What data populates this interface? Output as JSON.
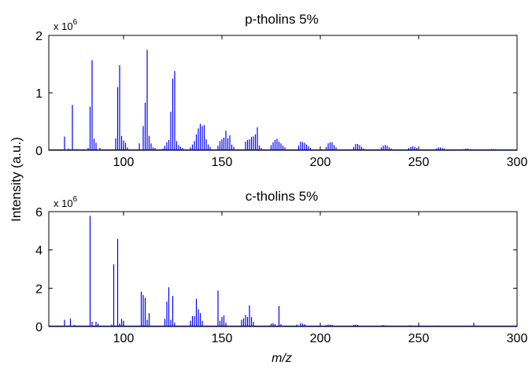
{
  "figure": {
    "ylabel": "Intensity (a.u.)",
    "xlabel": "m/z",
    "colors": {
      "spectrum": "#0000ff",
      "axes": "#000000"
    }
  },
  "chart_data": [
    {
      "type": "bar",
      "title": "p-tholins 5%",
      "xlabel": "",
      "ylabel": "",
      "xlim": [
        62,
        300
      ],
      "ylim": [
        0,
        2000000
      ],
      "xticks": [
        100,
        150,
        200,
        250,
        300
      ],
      "yticks": [
        0,
        1,
        2
      ],
      "yticks_labels": [
        "0",
        "1",
        "2"
      ],
      "y_multiplier": {
        "base": "x 10",
        "exponent": "6"
      },
      "grid": false,
      "peaks": [
        [
          70,
          240000
        ],
        [
          72,
          30000
        ],
        [
          74,
          790000
        ],
        [
          76,
          20000
        ],
        [
          82,
          40000
        ],
        [
          83,
          760000
        ],
        [
          84,
          1570000
        ],
        [
          85,
          200000
        ],
        [
          86,
          130000
        ],
        [
          88,
          40000
        ],
        [
          96,
          210000
        ],
        [
          97,
          1100000
        ],
        [
          98,
          1480000
        ],
        [
          99,
          250000
        ],
        [
          100,
          170000
        ],
        [
          101,
          130000
        ],
        [
          102,
          50000
        ],
        [
          108,
          120000
        ],
        [
          110,
          420000
        ],
        [
          111,
          830000
        ],
        [
          112,
          1750000
        ],
        [
          113,
          250000
        ],
        [
          114,
          120000
        ],
        [
          115,
          50000
        ],
        [
          116,
          40000
        ],
        [
          120,
          30000
        ],
        [
          121,
          80000
        ],
        [
          122,
          140000
        ],
        [
          123,
          180000
        ],
        [
          124,
          670000
        ],
        [
          125,
          1250000
        ],
        [
          126,
          1380000
        ],
        [
          127,
          160000
        ],
        [
          128,
          90000
        ],
        [
          129,
          60000
        ],
        [
          130,
          40000
        ],
        [
          134,
          50000
        ],
        [
          135,
          100000
        ],
        [
          136,
          160000
        ],
        [
          137,
          280000
        ],
        [
          138,
          380000
        ],
        [
          139,
          460000
        ],
        [
          140,
          420000
        ],
        [
          141,
          440000
        ],
        [
          142,
          190000
        ],
        [
          143,
          100000
        ],
        [
          144,
          60000
        ],
        [
          148,
          80000
        ],
        [
          149,
          160000
        ],
        [
          150,
          190000
        ],
        [
          151,
          220000
        ],
        [
          152,
          340000
        ],
        [
          153,
          210000
        ],
        [
          154,
          260000
        ],
        [
          155,
          100000
        ],
        [
          156,
          60000
        ],
        [
          162,
          150000
        ],
        [
          163,
          180000
        ],
        [
          164,
          190000
        ],
        [
          165,
          230000
        ],
        [
          166,
          240000
        ],
        [
          167,
          280000
        ],
        [
          168,
          400000
        ],
        [
          169,
          80000
        ],
        [
          170,
          40000
        ],
        [
          175,
          90000
        ],
        [
          176,
          140000
        ],
        [
          177,
          180000
        ],
        [
          178,
          200000
        ],
        [
          179,
          150000
        ],
        [
          180,
          120000
        ],
        [
          181,
          80000
        ],
        [
          182,
          50000
        ],
        [
          189,
          80000
        ],
        [
          190,
          150000
        ],
        [
          191,
          140000
        ],
        [
          192,
          130000
        ],
        [
          193,
          100000
        ],
        [
          194,
          70000
        ],
        [
          195,
          40000
        ],
        [
          203,
          60000
        ],
        [
          204,
          120000
        ],
        [
          205,
          140000
        ],
        [
          206,
          140000
        ],
        [
          207,
          90000
        ],
        [
          208,
          50000
        ],
        [
          217,
          60000
        ],
        [
          218,
          110000
        ],
        [
          219,
          110000
        ],
        [
          220,
          90000
        ],
        [
          221,
          60000
        ],
        [
          222,
          30000
        ],
        [
          231,
          50000
        ],
        [
          232,
          80000
        ],
        [
          233,
          90000
        ],
        [
          234,
          80000
        ],
        [
          235,
          50000
        ],
        [
          236,
          30000
        ],
        [
          245,
          40000
        ],
        [
          246,
          60000
        ],
        [
          247,
          70000
        ],
        [
          248,
          60000
        ],
        [
          249,
          40000
        ],
        [
          259,
          30000
        ],
        [
          260,
          50000
        ],
        [
          261,
          50000
        ],
        [
          262,
          40000
        ],
        [
          263,
          30000
        ],
        [
          273,
          20000
        ],
        [
          274,
          30000
        ],
        [
          275,
          30000
        ],
        [
          276,
          20000
        ],
        [
          287,
          20000
        ],
        [
          288,
          20000
        ],
        [
          289,
          20000
        ],
        [
          290,
          15000
        ]
      ]
    },
    {
      "type": "bar",
      "title": "c-tholins 5%",
      "xlabel": "m/z",
      "ylabel": "",
      "xlim": [
        62,
        300
      ],
      "ylim": [
        0,
        6000000
      ],
      "xticks": [
        100,
        150,
        200,
        250,
        300
      ],
      "yticks": [
        0,
        2,
        4,
        6
      ],
      "yticks_labels": [
        "0",
        "2",
        "4",
        "6"
      ],
      "y_multiplier": {
        "base": "x 10",
        "exponent": "6"
      },
      "grid": false,
      "peaks": [
        [
          70,
          350000
        ],
        [
          73,
          420000
        ],
        [
          75,
          80000
        ],
        [
          83,
          5780000
        ],
        [
          84,
          250000
        ],
        [
          86,
          250000
        ],
        [
          87,
          150000
        ],
        [
          94,
          100000
        ],
        [
          95,
          3250000
        ],
        [
          97,
          4580000
        ],
        [
          98,
          150000
        ],
        [
          99,
          400000
        ],
        [
          100,
          300000
        ],
        [
          109,
          1820000
        ],
        [
          110,
          1650000
        ],
        [
          111,
          1500000
        ],
        [
          112,
          350000
        ],
        [
          113,
          700000
        ],
        [
          121,
          400000
        ],
        [
          122,
          1300000
        ],
        [
          123,
          2050000
        ],
        [
          124,
          350000
        ],
        [
          125,
          1600000
        ],
        [
          126,
          200000
        ],
        [
          134,
          300000
        ],
        [
          135,
          550000
        ],
        [
          136,
          550000
        ],
        [
          137,
          1450000
        ],
        [
          138,
          900000
        ],
        [
          139,
          700000
        ],
        [
          140,
          300000
        ],
        [
          148,
          1880000
        ],
        [
          149,
          300000
        ],
        [
          150,
          500000
        ],
        [
          151,
          580000
        ],
        [
          152,
          200000
        ],
        [
          160,
          350000
        ],
        [
          161,
          420000
        ],
        [
          162,
          600000
        ],
        [
          163,
          500000
        ],
        [
          164,
          1100000
        ],
        [
          165,
          500000
        ],
        [
          166,
          250000
        ],
        [
          175,
          150000
        ],
        [
          176,
          180000
        ],
        [
          177,
          120000
        ],
        [
          179,
          1070000
        ],
        [
          180,
          120000
        ],
        [
          188,
          100000
        ],
        [
          190,
          180000
        ],
        [
          191,
          150000
        ],
        [
          192,
          120000
        ],
        [
          203,
          80000
        ],
        [
          204,
          100000
        ],
        [
          205,
          100000
        ],
        [
          206,
          80000
        ],
        [
          217,
          80000
        ],
        [
          218,
          100000
        ],
        [
          219,
          80000
        ],
        [
          231,
          60000
        ],
        [
          232,
          80000
        ],
        [
          233,
          60000
        ],
        [
          245,
          50000
        ],
        [
          246,
          60000
        ],
        [
          259,
          40000
        ],
        [
          260,
          50000
        ],
        [
          273,
          30000
        ],
        [
          278,
          200000
        ],
        [
          288,
          30000
        ]
      ]
    }
  ]
}
